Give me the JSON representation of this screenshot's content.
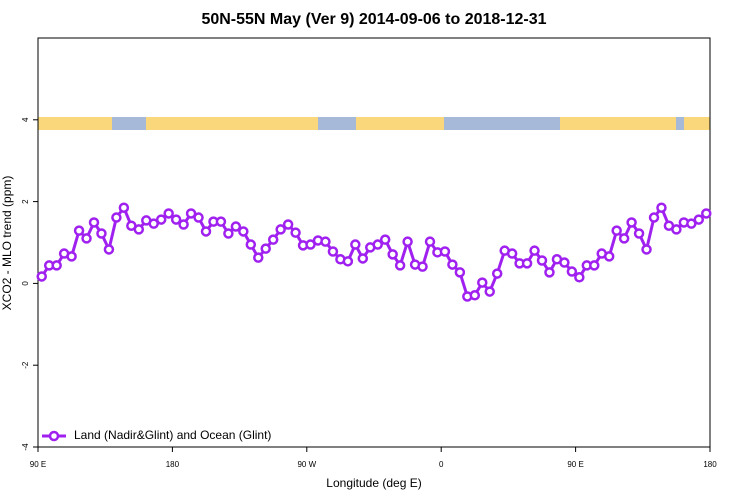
{
  "chart_data": {
    "type": "line",
    "title": "50N-55N May (Ver 9)   2014-09-06 to 2018-12-31",
    "x_label": "Longitude (deg E)",
    "y_label": "XCO2 - MLO trend (ppm)",
    "x": [
      92.5,
      97.5,
      102.5,
      107.5,
      112.5,
      117.5,
      122.5,
      127.5,
      132.5,
      137.5,
      142.5,
      147.5,
      152.5,
      157.5,
      162.5,
      167.5,
      172.5,
      177.5,
      182.5,
      187.5,
      192.5,
      197.5,
      202.5,
      207.5,
      212.5,
      217.5,
      222.5,
      227.5,
      232.5,
      237.5,
      242.5,
      247.5,
      252.5,
      257.5,
      262.5,
      267.5,
      272.5,
      277.5,
      282.5,
      287.5,
      292.5,
      297.5,
      302.5,
      307.5,
      312.5,
      317.5,
      322.5,
      327.5,
      332.5,
      337.5,
      342.5,
      347.5,
      352.5,
      357.5,
      362.5,
      367.5,
      372.5,
      377.5,
      382.5,
      387.5,
      392.5,
      397.5,
      402.5,
      407.5,
      412.5,
      417.5,
      422.5,
      427.5,
      432.5,
      437.5,
      442.5,
      447.5,
      452.5,
      457.5,
      462.5,
      467.5,
      472.5,
      477.5,
      482.5,
      487.5,
      492.5,
      497.5,
      502.5,
      507.5,
      512.5,
      517.5,
      522.5,
      527.5,
      532.5,
      537.5
    ],
    "series": [
      {
        "name": "Land (Nadir&Glint) and Ocean (Glint)",
        "color": "#a020f0",
        "values": [
          0.17,
          0.44,
          0.44,
          0.73,
          0.66,
          1.29,
          1.1,
          1.49,
          1.22,
          0.83,
          1.61,
          1.85,
          1.41,
          1.32,
          1.54,
          1.46,
          1.56,
          1.71,
          1.56,
          1.44,
          1.71,
          1.61,
          1.27,
          1.51,
          1.51,
          1.22,
          1.39,
          1.27,
          0.95,
          0.63,
          0.85,
          1.07,
          1.32,
          1.44,
          1.24,
          0.93,
          0.95,
          1.05,
          1.02,
          0.78,
          0.59,
          0.54,
          0.95,
          0.61,
          0.88,
          0.95,
          1.07,
          0.71,
          0.44,
          1.02,
          0.46,
          0.41,
          1.02,
          0.76,
          0.78,
          0.46,
          0.27,
          -0.32,
          -0.29,
          0.02,
          -0.2,
          0.24,
          0.8,
          0.73,
          0.49,
          0.49,
          0.8,
          0.56,
          0.27,
          0.59,
          0.51,
          0.29,
          0.15,
          0.44,
          0.44,
          0.73,
          0.66,
          1.29,
          1.1,
          1.49,
          1.22,
          0.83,
          1.61,
          1.85,
          1.41,
          1.32,
          1.49,
          1.46,
          1.56,
          1.71
        ]
      }
    ],
    "xlim": [
      90,
      540
    ],
    "xticks": [
      {
        "value": 90,
        "label": "90 E"
      },
      180,
      {
        "value": 270,
        "label": "90 W"
      },
      {
        "value": 360,
        "label": "0"
      },
      {
        "value": 450,
        "label": "90 E"
      },
      {
        "value": 540,
        "label": "180"
      }
    ],
    "ylim": [
      -4,
      6
    ],
    "yticks": [
      -4,
      -2,
      0,
      2,
      4
    ],
    "legend": "bottom-left"
  }
}
